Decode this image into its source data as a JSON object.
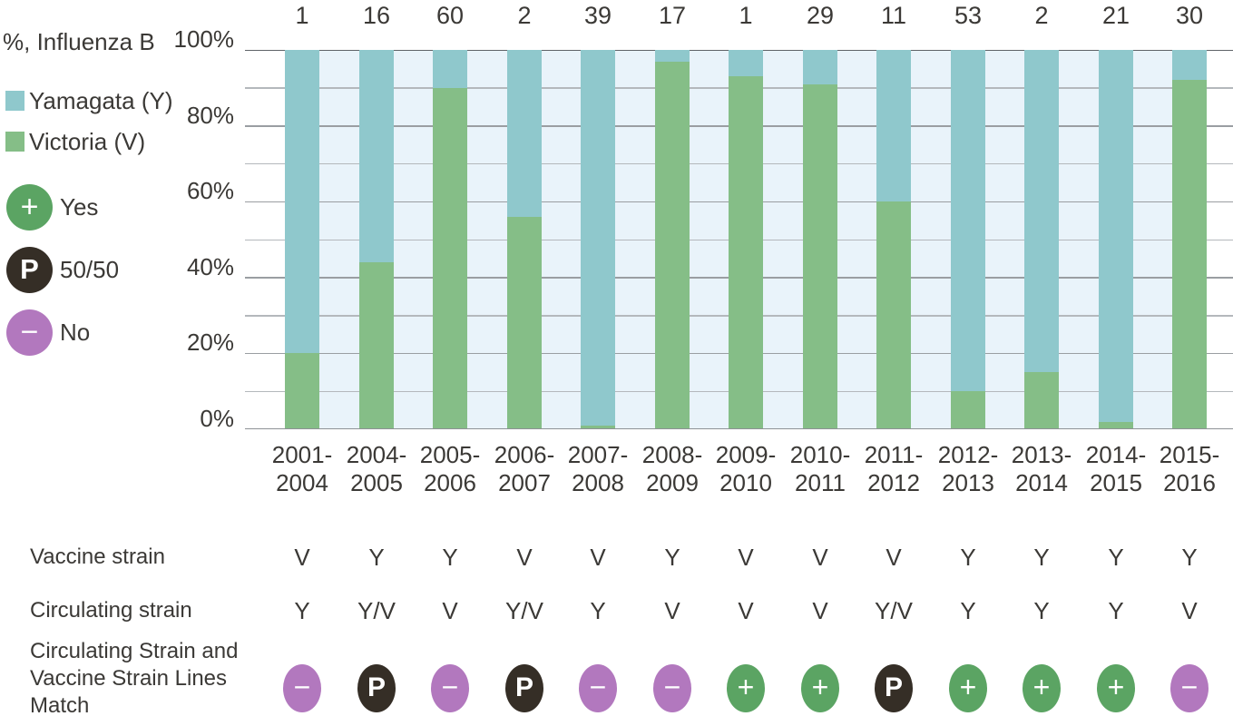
{
  "title": "%, Influenza B",
  "colors": {
    "yamagata": "#8fc8cc",
    "victoria": "#85be87",
    "plot_bg": "#e9f3fa",
    "grid_minor": "#b4b8bc",
    "grid_major": "#9a9ea2",
    "axis_top": "#5f6468",
    "axis_bottom": "#8e9296",
    "match_yes": "#5ba463",
    "match_5050": "#352e26",
    "match_no": "#b278be",
    "text": "#3b3936"
  },
  "legend": {
    "series": [
      {
        "label": "Yamagata (Y)",
        "color_key": "yamagata"
      },
      {
        "label": "Victoria (V)",
        "color_key": "victoria"
      }
    ],
    "match": [
      {
        "symbol": "+",
        "label": "Yes",
        "color_key": "match_yes"
      },
      {
        "symbol": "P",
        "label": "50/50",
        "color_key": "match_5050"
      },
      {
        "symbol": "−",
        "label": "No",
        "color_key": "match_no"
      }
    ]
  },
  "chart_data": {
    "type": "bar",
    "stacked": true,
    "title": "%, Influenza B",
    "categories": [
      "2001-2004",
      "2004-2005",
      "2005-2006",
      "2006-2007",
      "2007-2008",
      "2008-2009",
      "2009-2010",
      "2010-2011",
      "2011-2012",
      "2012-2013",
      "2013-2014",
      "2014-2015",
      "2015-2016"
    ],
    "counts_above_bars": [
      1,
      16,
      60,
      2,
      39,
      17,
      1,
      29,
      11,
      53,
      2,
      21,
      30
    ],
    "series": [
      {
        "name": "Victoria (V)",
        "color_key": "victoria",
        "values": [
          20,
          44,
          90,
          56,
          1,
          97,
          93,
          91,
          60,
          10,
          15,
          2,
          92
        ]
      },
      {
        "name": "Yamagata (Y)",
        "color_key": "yamagata",
        "values": [
          80,
          56,
          10,
          44,
          99,
          3,
          7,
          9,
          40,
          90,
          85,
          98,
          8
        ]
      }
    ],
    "ylabel": "%, Influenza B",
    "ylim": [
      0,
      100
    ],
    "ytick_labels": [
      "0%",
      "20%",
      "40%",
      "60%",
      "80%",
      "100%"
    ],
    "ytick_values": [
      0,
      20,
      40,
      60,
      80,
      100
    ],
    "grid_interval_pct": 10,
    "legend_position": "left"
  },
  "table": {
    "rows": [
      {
        "label": "Vaccine strain",
        "values": [
          "V",
          "Y",
          "Y",
          "V",
          "V",
          "Y",
          "V",
          "V",
          "V",
          "Y",
          "Y",
          "Y",
          "Y"
        ]
      },
      {
        "label": "Circulating strain",
        "values": [
          "Y",
          "Y/V",
          "V",
          "Y/V",
          "Y",
          "V",
          "V",
          "V",
          "Y/V",
          "Y",
          "Y",
          "Y",
          "V"
        ]
      },
      {
        "label": "Circulating Strain and Vaccine Strain Lines Match",
        "values": [
          "−",
          "P",
          "−",
          "P",
          "−",
          "−",
          "+",
          "+",
          "P",
          "+",
          "+",
          "+",
          "−"
        ]
      }
    ]
  }
}
